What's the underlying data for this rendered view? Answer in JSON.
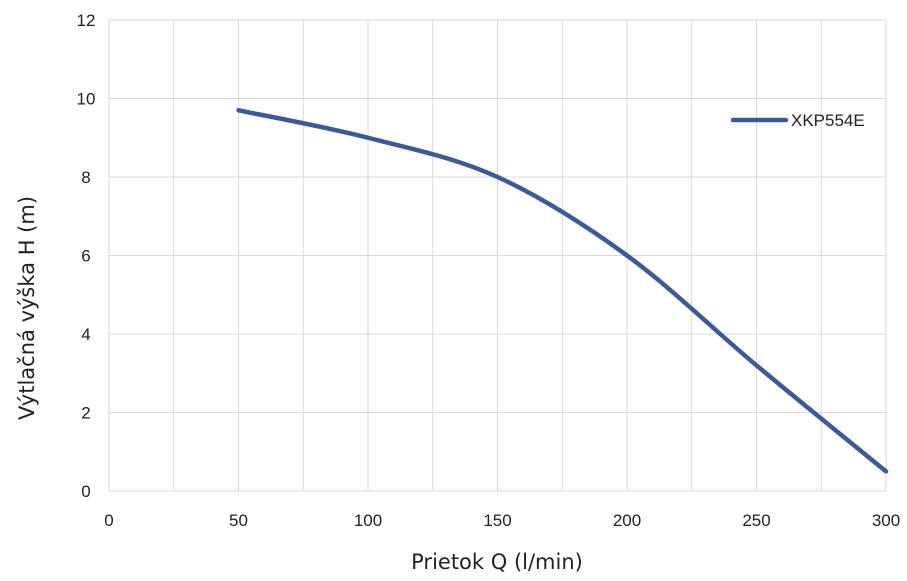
{
  "chart_data": {
    "type": "line",
    "xlabel": "Prietok Q (l/min)",
    "ylabel": "Výtlačná výška H (m)",
    "xlim": [
      0,
      300
    ],
    "ylim": [
      0,
      12
    ],
    "x_ticks": [
      0,
      50,
      100,
      150,
      200,
      250,
      300
    ],
    "y_ticks": [
      0,
      2,
      4,
      6,
      8,
      10,
      12
    ],
    "x_minor_gridlines": [
      25,
      75,
      125,
      175,
      225,
      275
    ],
    "grid": true,
    "legend_position": "top-right",
    "series": [
      {
        "name": "XKP554E",
        "color": "#3a5a9a",
        "x": [
          50,
          100,
          150,
          200,
          250,
          300
        ],
        "y": [
          9.7,
          9.0,
          8.0,
          6.0,
          3.2,
          0.5
        ]
      }
    ]
  }
}
